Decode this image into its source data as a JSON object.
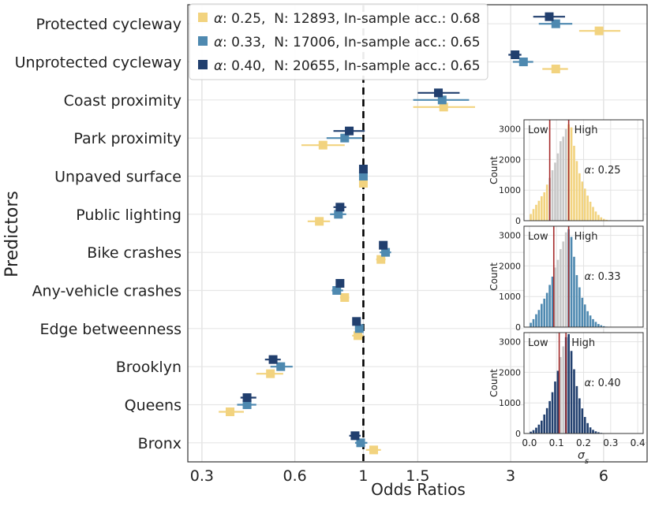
{
  "chart_data": [
    {
      "type": "forest-plot",
      "xlabel": "Odds Ratios",
      "ylabel": "Predictors",
      "xscale": "log",
      "xlim": [
        0.27,
        8.3
      ],
      "xticks": [
        0.3,
        0.6,
        1,
        1.5,
        3,
        6
      ],
      "xtick_labels": [
        "0.3",
        "0.6",
        "1",
        "1.5",
        "3",
        "6"
      ],
      "reference_line": 1,
      "grid": true,
      "legend_position": "top-left",
      "categories": [
        "Protected cycleway",
        "Unprotected cycleway",
        "Coast proximity",
        "Park proximity",
        "Unpaved surface",
        "Public lighting",
        "Bike crashes",
        "Any-vehicle crashes",
        "Edge betweenness",
        "Brooklyn",
        "Queens",
        "Bronx"
      ],
      "series": [
        {
          "name": "α: 0.25",
          "legend_rest": ": 0.25,  N: 12893, In-sample acc.: 0.68",
          "color": "#f2d37f",
          "points": [
            {
              "or": 5.8,
              "lo": 5.0,
              "hi": 6.8
            },
            {
              "or": 4.2,
              "lo": 3.8,
              "hi": 4.6
            },
            {
              "or": 1.82,
              "lo": 1.45,
              "hi": 2.3
            },
            {
              "or": 0.74,
              "lo": 0.63,
              "hi": 0.87
            },
            {
              "or": 1.0,
              "lo": 0.99,
              "hi": 1.01
            },
            {
              "or": 0.72,
              "lo": 0.66,
              "hi": 0.78
            },
            {
              "or": 1.14,
              "lo": 1.1,
              "hi": 1.18
            },
            {
              "or": 0.87,
              "lo": 0.84,
              "hi": 0.9
            },
            {
              "or": 0.96,
              "lo": 0.92,
              "hi": 1.0
            },
            {
              "or": 0.5,
              "lo": 0.45,
              "hi": 0.55
            },
            {
              "or": 0.37,
              "lo": 0.34,
              "hi": 0.41
            },
            {
              "or": 1.08,
              "lo": 1.02,
              "hi": 1.14
            }
          ]
        },
        {
          "name": "α: 0.33",
          "legend_rest": ": 0.33,  N: 17006, In-sample acc.: 0.65",
          "color": "#4e89b0",
          "points": [
            {
              "or": 4.2,
              "lo": 3.7,
              "hi": 4.75
            },
            {
              "or": 3.3,
              "lo": 3.05,
              "hi": 3.55
            },
            {
              "or": 1.8,
              "lo": 1.45,
              "hi": 2.2
            },
            {
              "or": 0.87,
              "lo": 0.76,
              "hi": 0.99
            },
            {
              "or": 1.0,
              "lo": 0.99,
              "hi": 1.01
            },
            {
              "or": 0.83,
              "lo": 0.78,
              "hi": 0.88
            },
            {
              "or": 1.18,
              "lo": 1.13,
              "hi": 1.23
            },
            {
              "or": 0.82,
              "lo": 0.79,
              "hi": 0.86
            },
            {
              "or": 0.97,
              "lo": 0.94,
              "hi": 1.0
            },
            {
              "or": 0.54,
              "lo": 0.5,
              "hi": 0.59
            },
            {
              "or": 0.42,
              "lo": 0.39,
              "hi": 0.45
            },
            {
              "or": 0.98,
              "lo": 0.94,
              "hi": 1.03
            }
          ]
        },
        {
          "name": "α: 0.40",
          "legend_rest": ": 0.40,  N: 20655, In-sample acc.: 0.65",
          "color": "#213f6e",
          "points": [
            {
              "or": 4.0,
              "lo": 3.55,
              "hi": 4.5
            },
            {
              "or": 3.1,
              "lo": 2.95,
              "hi": 3.25
            },
            {
              "or": 1.75,
              "lo": 1.5,
              "hi": 2.05
            },
            {
              "or": 0.9,
              "lo": 0.8,
              "hi": 1.01
            },
            {
              "or": 1.0,
              "lo": 0.99,
              "hi": 1.01
            },
            {
              "or": 0.84,
              "lo": 0.8,
              "hi": 0.88
            },
            {
              "or": 1.16,
              "lo": 1.13,
              "hi": 1.19
            },
            {
              "or": 0.84,
              "lo": 0.82,
              "hi": 0.86
            },
            {
              "or": 0.95,
              "lo": 0.93,
              "hi": 0.97
            },
            {
              "or": 0.51,
              "lo": 0.48,
              "hi": 0.54
            },
            {
              "or": 0.42,
              "lo": 0.4,
              "hi": 0.45
            },
            {
              "or": 0.94,
              "lo": 0.9,
              "hi": 0.98
            }
          ]
        }
      ]
    },
    {
      "type": "histogram-insets",
      "xlabel": "σ_s",
      "ylabel": "Count",
      "xlim": [
        -0.02,
        0.42
      ],
      "ylim": [
        0,
        3300
      ],
      "xticks": [
        0.0,
        0.1,
        0.2,
        0.3,
        0.4
      ],
      "xtick_labels": [
        "0.0",
        "0.1",
        "0.2",
        "0.3",
        "0.4"
      ],
      "yticks": [
        0,
        1000,
        2000,
        3000
      ],
      "ytick_labels": [
        "0",
        "1000",
        "2000",
        "3000"
      ],
      "bin_width": 0.01,
      "x_start": 0.0,
      "low_label": "Low",
      "high_label": "High",
      "threshold_color": "#a52a2a",
      "panels": [
        {
          "label": "α: 0.25",
          "color": "#f2d37f",
          "thresholds": [
            0.075,
            0.145
          ],
          "counts": [
            220,
            380,
            520,
            650,
            800,
            930,
            1180,
            1400,
            1650,
            1900,
            2200,
            2600,
            2750,
            3000,
            3150,
            3050,
            2450,
            1950,
            1550,
            1280,
            1050,
            820,
            620,
            450,
            300,
            190,
            110,
            60,
            30,
            15,
            8,
            4,
            2,
            1,
            0,
            0,
            0,
            0,
            0,
            0,
            0,
            0,
            0
          ]
        },
        {
          "label": "α: 0.33",
          "color": "#4e89b0",
          "thresholds": [
            0.09,
            0.145
          ],
          "counts": [
            140,
            260,
            420,
            560,
            760,
            930,
            1120,
            1380,
            1650,
            1950,
            2200,
            2550,
            2800,
            3100,
            3200,
            2950,
            2300,
            1700,
            1300,
            960,
            740,
            520,
            380,
            260,
            170,
            100,
            60,
            30,
            15,
            7,
            3,
            1,
            0,
            0,
            0,
            0,
            0,
            0,
            0,
            0,
            0,
            0,
            0
          ]
        },
        {
          "label": "α: 0.40",
          "color": "#213f6e",
          "thresholds": [
            0.11,
            0.135
          ],
          "counts": [
            60,
            110,
            190,
            290,
            420,
            620,
            830,
            1060,
            1350,
            1700,
            2050,
            2500,
            2850,
            3150,
            3250,
            2700,
            2100,
            1550,
            1150,
            820,
            540,
            340,
            200,
            120,
            70,
            40,
            20,
            10,
            5,
            2,
            1,
            0,
            0,
            0,
            0,
            0,
            0,
            0,
            0,
            0,
            0,
            0,
            0
          ]
        }
      ]
    }
  ]
}
